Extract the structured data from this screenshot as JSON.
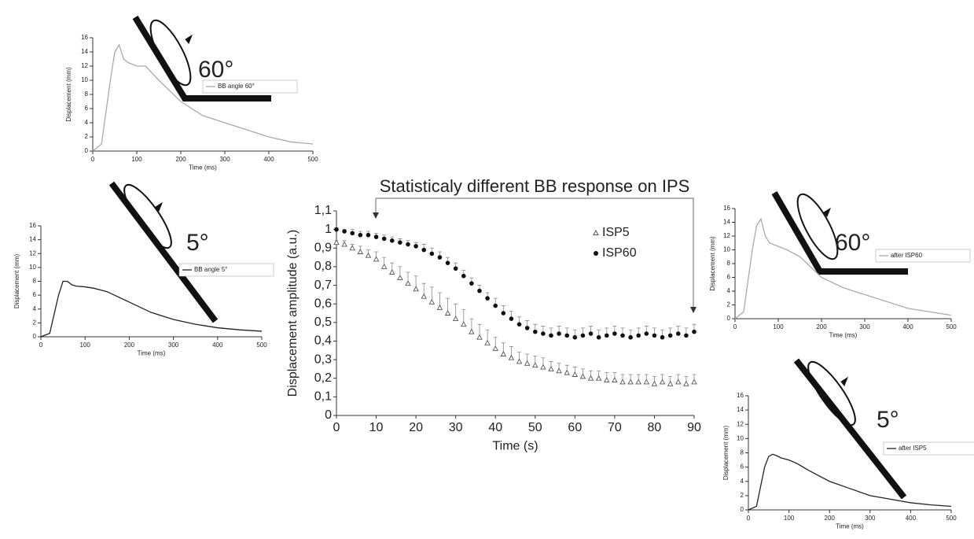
{
  "chart_data": [
    {
      "type": "line",
      "ylabel": "Displacement (mm)",
      "xlabel": "Time (ms)",
      "annotation": "60°",
      "x": [
        0,
        20,
        40,
        50,
        60,
        70,
        80,
        100,
        120,
        150,
        200,
        250,
        300,
        350,
        400,
        450,
        500
      ],
      "series": [
        {
          "name": "BB angle 60°",
          "color": "#aaaaaa",
          "values": [
            0,
            1,
            10,
            14,
            15,
            13,
            12.5,
            12,
            12,
            10,
            7,
            5,
            4,
            3,
            2,
            1.3,
            1
          ]
        }
      ],
      "xlim": [
        0,
        500
      ],
      "ylim": [
        0,
        16
      ],
      "xticks": [
        0,
        100,
        200,
        300,
        400,
        500
      ],
      "yticks": [
        0,
        2,
        4,
        6,
        8,
        10,
        12,
        14,
        16
      ]
    },
    {
      "type": "line",
      "ylabel": "Displacement (mm)",
      "xlabel": "Time (ms)",
      "annotation": "5°",
      "x": [
        0,
        20,
        40,
        50,
        60,
        70,
        80,
        100,
        120,
        150,
        200,
        250,
        300,
        350,
        400,
        450,
        500
      ],
      "series": [
        {
          "name": "BB angle 5°",
          "color": "#222222",
          "values": [
            0,
            0.5,
            6,
            8,
            8,
            7.5,
            7.3,
            7.2,
            7,
            6.5,
            5,
            3.5,
            2.5,
            1.8,
            1.3,
            1,
            0.8
          ]
        }
      ],
      "xlim": [
        0,
        500
      ],
      "ylim": [
        0,
        16
      ],
      "xticks": [
        0,
        100,
        200,
        300,
        400,
        500
      ],
      "yticks": [
        0,
        2,
        4,
        6,
        8,
        10,
        12,
        14,
        16
      ]
    },
    {
      "type": "scatter",
      "title": "Statisticaly different BB response on IPS",
      "ylabel": "Displacement amplitude (a.u.)",
      "xlabel": "Time (s)",
      "x": [
        0,
        2,
        4,
        6,
        8,
        10,
        12,
        14,
        16,
        18,
        20,
        22,
        24,
        26,
        28,
        30,
        32,
        34,
        36,
        38,
        40,
        42,
        44,
        46,
        48,
        50,
        52,
        54,
        56,
        58,
        60,
        62,
        64,
        66,
        68,
        70,
        72,
        74,
        76,
        78,
        80,
        82,
        84,
        86,
        88,
        90
      ],
      "series": [
        {
          "name": "ISP5",
          "color": "#555555",
          "marker": "triangle",
          "values": [
            0.93,
            0.92,
            0.9,
            0.88,
            0.86,
            0.84,
            0.8,
            0.77,
            0.74,
            0.71,
            0.68,
            0.64,
            0.61,
            0.58,
            0.55,
            0.52,
            0.49,
            0.45,
            0.42,
            0.39,
            0.36,
            0.33,
            0.31,
            0.29,
            0.28,
            0.27,
            0.26,
            0.25,
            0.24,
            0.23,
            0.22,
            0.21,
            0.2,
            0.2,
            0.19,
            0.19,
            0.18,
            0.18,
            0.18,
            0.18,
            0.17,
            0.18,
            0.17,
            0.18,
            0.17,
            0.18
          ],
          "errors": [
            0.01,
            0.02,
            0.02,
            0.03,
            0.03,
            0.04,
            0.05,
            0.05,
            0.06,
            0.06,
            0.07,
            0.07,
            0.08,
            0.08,
            0.08,
            0.08,
            0.08,
            0.07,
            0.07,
            0.07,
            0.06,
            0.06,
            0.06,
            0.05,
            0.05,
            0.05,
            0.05,
            0.04,
            0.04,
            0.04,
            0.04,
            0.04,
            0.04,
            0.04,
            0.04,
            0.04,
            0.04,
            0.04,
            0.04,
            0.04,
            0.04,
            0.04,
            0.04,
            0.04,
            0.04,
            0.04
          ]
        },
        {
          "name": "ISP60",
          "color": "#111111",
          "marker": "circle",
          "values": [
            1.0,
            0.99,
            0.98,
            0.97,
            0.97,
            0.96,
            0.95,
            0.94,
            0.93,
            0.92,
            0.91,
            0.89,
            0.87,
            0.85,
            0.82,
            0.79,
            0.75,
            0.71,
            0.67,
            0.63,
            0.59,
            0.55,
            0.52,
            0.49,
            0.47,
            0.45,
            0.44,
            0.43,
            0.44,
            0.43,
            0.42,
            0.43,
            0.44,
            0.42,
            0.43,
            0.44,
            0.43,
            0.42,
            0.43,
            0.44,
            0.43,
            0.42,
            0.43,
            0.44,
            0.43,
            0.45
          ],
          "errors": [
            0.01,
            0.01,
            0.02,
            0.02,
            0.02,
            0.02,
            0.02,
            0.02,
            0.02,
            0.02,
            0.02,
            0.03,
            0.03,
            0.03,
            0.03,
            0.03,
            0.03,
            0.03,
            0.03,
            0.03,
            0.04,
            0.04,
            0.04,
            0.04,
            0.04,
            0.04,
            0.04,
            0.04,
            0.04,
            0.04,
            0.04,
            0.04,
            0.04,
            0.04,
            0.04,
            0.04,
            0.04,
            0.04,
            0.04,
            0.04,
            0.04,
            0.04,
            0.04,
            0.04,
            0.04,
            0.04
          ]
        }
      ],
      "xlim": [
        0,
        90
      ],
      "ylim": [
        0,
        1.1
      ],
      "xticks": [
        0,
        10,
        20,
        30,
        40,
        50,
        60,
        70,
        80,
        90
      ],
      "yticks": [
        0,
        {
          "value": 0.1,
          "label": "0,1"
        },
        {
          "value": 0.2,
          "label": "0,2"
        },
        {
          "value": 0.3,
          "label": "0,3"
        },
        {
          "value": 0.4,
          "label": "0,4"
        },
        {
          "value": 0.5,
          "label": "0,5"
        },
        {
          "value": 0.6,
          "label": "0,6"
        },
        {
          "value": 0.7,
          "label": "0,7"
        },
        {
          "value": 0.8,
          "label": "0,8"
        },
        {
          "value": 0.9,
          "label": "0,9"
        },
        1,
        {
          "value": 1.1,
          "label": "1,1"
        }
      ]
    },
    {
      "type": "line",
      "ylabel": "Displacement (mm)",
      "xlabel": "Time (ms)",
      "annotation": "60°",
      "x": [
        0,
        20,
        40,
        50,
        60,
        70,
        80,
        100,
        120,
        150,
        200,
        250,
        300,
        350,
        400,
        450,
        500
      ],
      "series": [
        {
          "name": "after ISP60",
          "color": "#aaaaaa",
          "values": [
            0,
            1,
            10,
            13.5,
            14.5,
            12,
            11,
            10.5,
            10,
            9,
            6,
            4.5,
            3.5,
            2.5,
            1.5,
            1,
            0.5
          ]
        }
      ],
      "xlim": [
        0,
        500
      ],
      "ylim": [
        0,
        16
      ],
      "xticks": [
        0,
        100,
        200,
        300,
        400,
        500
      ],
      "yticks": [
        0,
        2,
        4,
        6,
        8,
        10,
        12,
        14,
        16
      ]
    },
    {
      "type": "line",
      "ylabel": "Displacement (mm)",
      "xlabel": "Time (ms)",
      "annotation": "5°",
      "x": [
        0,
        20,
        40,
        50,
        60,
        70,
        80,
        100,
        120,
        150,
        200,
        250,
        300,
        350,
        400,
        450,
        500
      ],
      "series": [
        {
          "name": "after ISP5",
          "color": "#222222",
          "values": [
            0,
            0.5,
            6,
            7.5,
            7.8,
            7.6,
            7.3,
            7,
            6.5,
            5.5,
            4,
            3,
            2,
            1.5,
            1,
            0.7,
            0.5
          ]
        }
      ],
      "xlim": [
        0,
        500
      ],
      "ylim": [
        0,
        16
      ],
      "xticks": [
        0,
        100,
        200,
        300,
        400,
        500
      ],
      "yticks": [
        0,
        2,
        4,
        6,
        8,
        10,
        12,
        14,
        16
      ]
    }
  ]
}
